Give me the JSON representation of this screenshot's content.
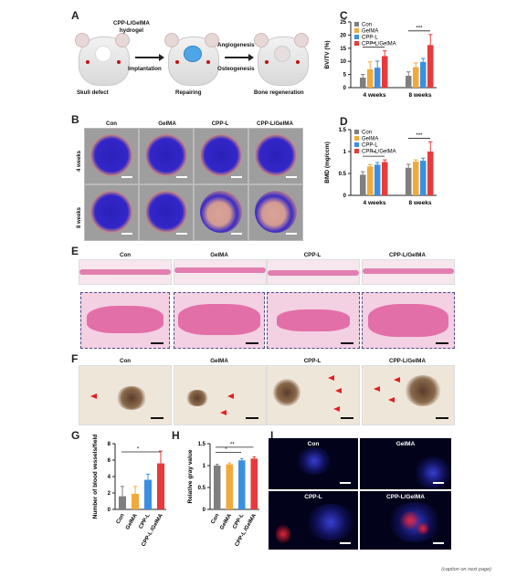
{
  "panels": {
    "A": {
      "letter": "A",
      "hydrogel_label": "CPP-L/GelMA\nhydrogel",
      "implant": "Implantation",
      "angio": "Angiogenesis",
      "osteo": "Osteogenesis",
      "skull": "Skull defect",
      "repairing": "Repairing",
      "regen": "Bone regeneration"
    },
    "B": {
      "letter": "B",
      "cols": [
        "Con",
        "GelMA",
        "CPP-L",
        "CPP-L/GelMA"
      ],
      "rows": [
        "4 weeks",
        "8 weeks"
      ]
    },
    "E": {
      "letter": "E",
      "cols": [
        "Con",
        "GelMA",
        "CPP-L",
        "CPP-L/GelMA"
      ]
    },
    "F": {
      "letter": "F",
      "cols": [
        "Con",
        "GelMA",
        "CPP-L",
        "CPP-L/GelMA"
      ]
    },
    "I": {
      "letter": "I",
      "labels": [
        "Con",
        "GelMA",
        "CPP-L",
        "CPP-L/GelMA"
      ]
    }
  },
  "colors": {
    "Con": "#7f7f7f",
    "GelMA": "#f2a93b",
    "CPP-L": "#3b8fe0",
    "CPP-L/GelMA": "#e83a3a"
  },
  "chart_data": [
    {
      "panel": "C",
      "type": "bar",
      "ylabel": "BV/TV (%)",
      "ylim": [
        0,
        25
      ],
      "yticks": [
        0,
        5,
        10,
        15,
        20,
        25
      ],
      "categories": [
        "4 weeks",
        "8 weeks"
      ],
      "legend": [
        "Con",
        "GelMA",
        "CPP-L",
        "CPP-L/GelMA"
      ],
      "series": [
        {
          "name": "Con",
          "values": [
            3.8,
            4.5
          ],
          "errors": [
            1.2,
            1.5
          ]
        },
        {
          "name": "GelMA",
          "values": [
            7.0,
            7.8
          ],
          "errors": [
            2.8,
            1.6
          ]
        },
        {
          "name": "CPP-L",
          "values": [
            7.6,
            9.8
          ],
          "errors": [
            2.5,
            1.3
          ]
        },
        {
          "name": "CPP-L/GelMA",
          "values": [
            12.0,
            16.2
          ],
          "errors": [
            2.0,
            4.0
          ]
        }
      ],
      "annotations": [
        "**",
        "***"
      ]
    },
    {
      "panel": "D",
      "type": "bar",
      "ylabel": "BMD (mg/ccm)",
      "ylim": [
        0,
        1.5
      ],
      "yticks": [
        0,
        0.5,
        1.0,
        1.5
      ],
      "categories": [
        "4 weeks",
        "8 weeks"
      ],
      "legend": [
        "Con",
        "GelMA",
        "CPP-L",
        "CPP-L/GelMA"
      ],
      "series": [
        {
          "name": "Con",
          "values": [
            0.47,
            0.63
          ],
          "errors": [
            0.07,
            0.08
          ]
        },
        {
          "name": "GelMA",
          "values": [
            0.66,
            0.77
          ],
          "errors": [
            0.04,
            0.04
          ]
        },
        {
          "name": "CPP-L",
          "values": [
            0.7,
            0.79
          ],
          "errors": [
            0.05,
            0.06
          ]
        },
        {
          "name": "CPP-L/GelMA",
          "values": [
            0.76,
            1.0
          ],
          "errors": [
            0.05,
            0.22
          ]
        }
      ],
      "annotations": [
        "**",
        "***"
      ]
    },
    {
      "panel": "G",
      "type": "bar",
      "ylabel": "Number of blood vessels/field",
      "ylim": [
        0,
        8
      ],
      "yticks": [
        0,
        2,
        4,
        6,
        8
      ],
      "categories": [
        "Con",
        "GelMA",
        "CPP-L",
        "CPP-L\n/GelMA"
      ],
      "values": [
        1.6,
        1.9,
        3.6,
        5.6
      ],
      "errors": [
        1.2,
        0.9,
        0.7,
        1.5
      ],
      "annotations": [
        "*"
      ]
    },
    {
      "panel": "H",
      "type": "bar",
      "ylabel": "Relative gray value",
      "ylim": [
        0,
        1.5
      ],
      "yticks": [
        0,
        0.5,
        1.0,
        1.5
      ],
      "categories": [
        "Con",
        "GelMA",
        "CPP-L",
        "CPP-L\n/GelMA"
      ],
      "values": [
        1.0,
        1.03,
        1.12,
        1.16
      ],
      "errors": [
        0.03,
        0.03,
        0.04,
        0.04
      ],
      "annotations": [
        "*",
        "**"
      ]
    }
  ],
  "caption": "(caption on next page)"
}
